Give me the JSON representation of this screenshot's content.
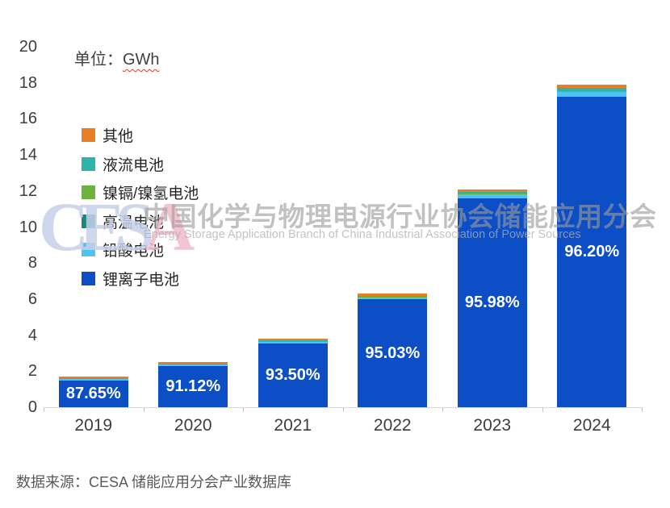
{
  "title": {
    "unit_prefix": "单位：",
    "unit": "GWh"
  },
  "watermark": {
    "cesa_ces": "CES",
    "cesa_a": "A",
    "cn": "中国化学与物理电源行业协会储能应用分会",
    "en": "Energy Storage Application Branch of China Industrial Association of Power Sources"
  },
  "source": "数据来源：CESA 储能应用分会产业数据库",
  "chart_data": {
    "type": "bar",
    "stacked": true,
    "unit": "GWh",
    "title": "单位：GWh",
    "categories": [
      "2019",
      "2020",
      "2021",
      "2022",
      "2023",
      "2024"
    ],
    "series": [
      {
        "name": "锂离子电池",
        "color": "#0c4ec5",
        "values": [
          1.49,
          2.28,
          3.55,
          5.99,
          11.61,
          17.22
        ]
      },
      {
        "name": "铅酸电池",
        "color": "#4ec3f1",
        "values": [
          0.1,
          0.11,
          0.12,
          0.14,
          0.22,
          0.3
        ]
      },
      {
        "name": "高温电池",
        "color": "#1d857c",
        "values": [
          0.005,
          0.005,
          0.005,
          0.005,
          0.01,
          0.02
        ]
      },
      {
        "name": "镍镉/镍氢电池",
        "color": "#6cb33e",
        "values": [
          0.005,
          0.005,
          0.005,
          0.005,
          0.01,
          0.02
        ]
      },
      {
        "name": "液流电池",
        "color": "#2fb5a8",
        "values": [
          0.02,
          0.02,
          0.03,
          0.05,
          0.1,
          0.14
        ]
      },
      {
        "name": "其他",
        "color": "#e87e23",
        "values": [
          0.08,
          0.08,
          0.09,
          0.11,
          0.15,
          0.2
        ]
      }
    ],
    "totals": [
      1.7,
      2.5,
      3.81,
      6.3,
      12.1,
      17.9
    ],
    "bar_labels": [
      "87.65%",
      "91.12%",
      "93.50%",
      "95.03%",
      "95.98%",
      "96.20%"
    ],
    "bar_label_series": "锂离子电池",
    "yticks": [
      0,
      2,
      4,
      6,
      8,
      10,
      12,
      14,
      16,
      18,
      20
    ],
    "ylim": [
      0,
      20
    ],
    "grid": false,
    "legend_position": "upper-left-inside",
    "legend_order_top_to_bottom": [
      "其他",
      "液流电池",
      "镍镉/镍氢电池",
      "高温电池",
      "铅酸电池",
      "锂离子电池"
    ]
  }
}
